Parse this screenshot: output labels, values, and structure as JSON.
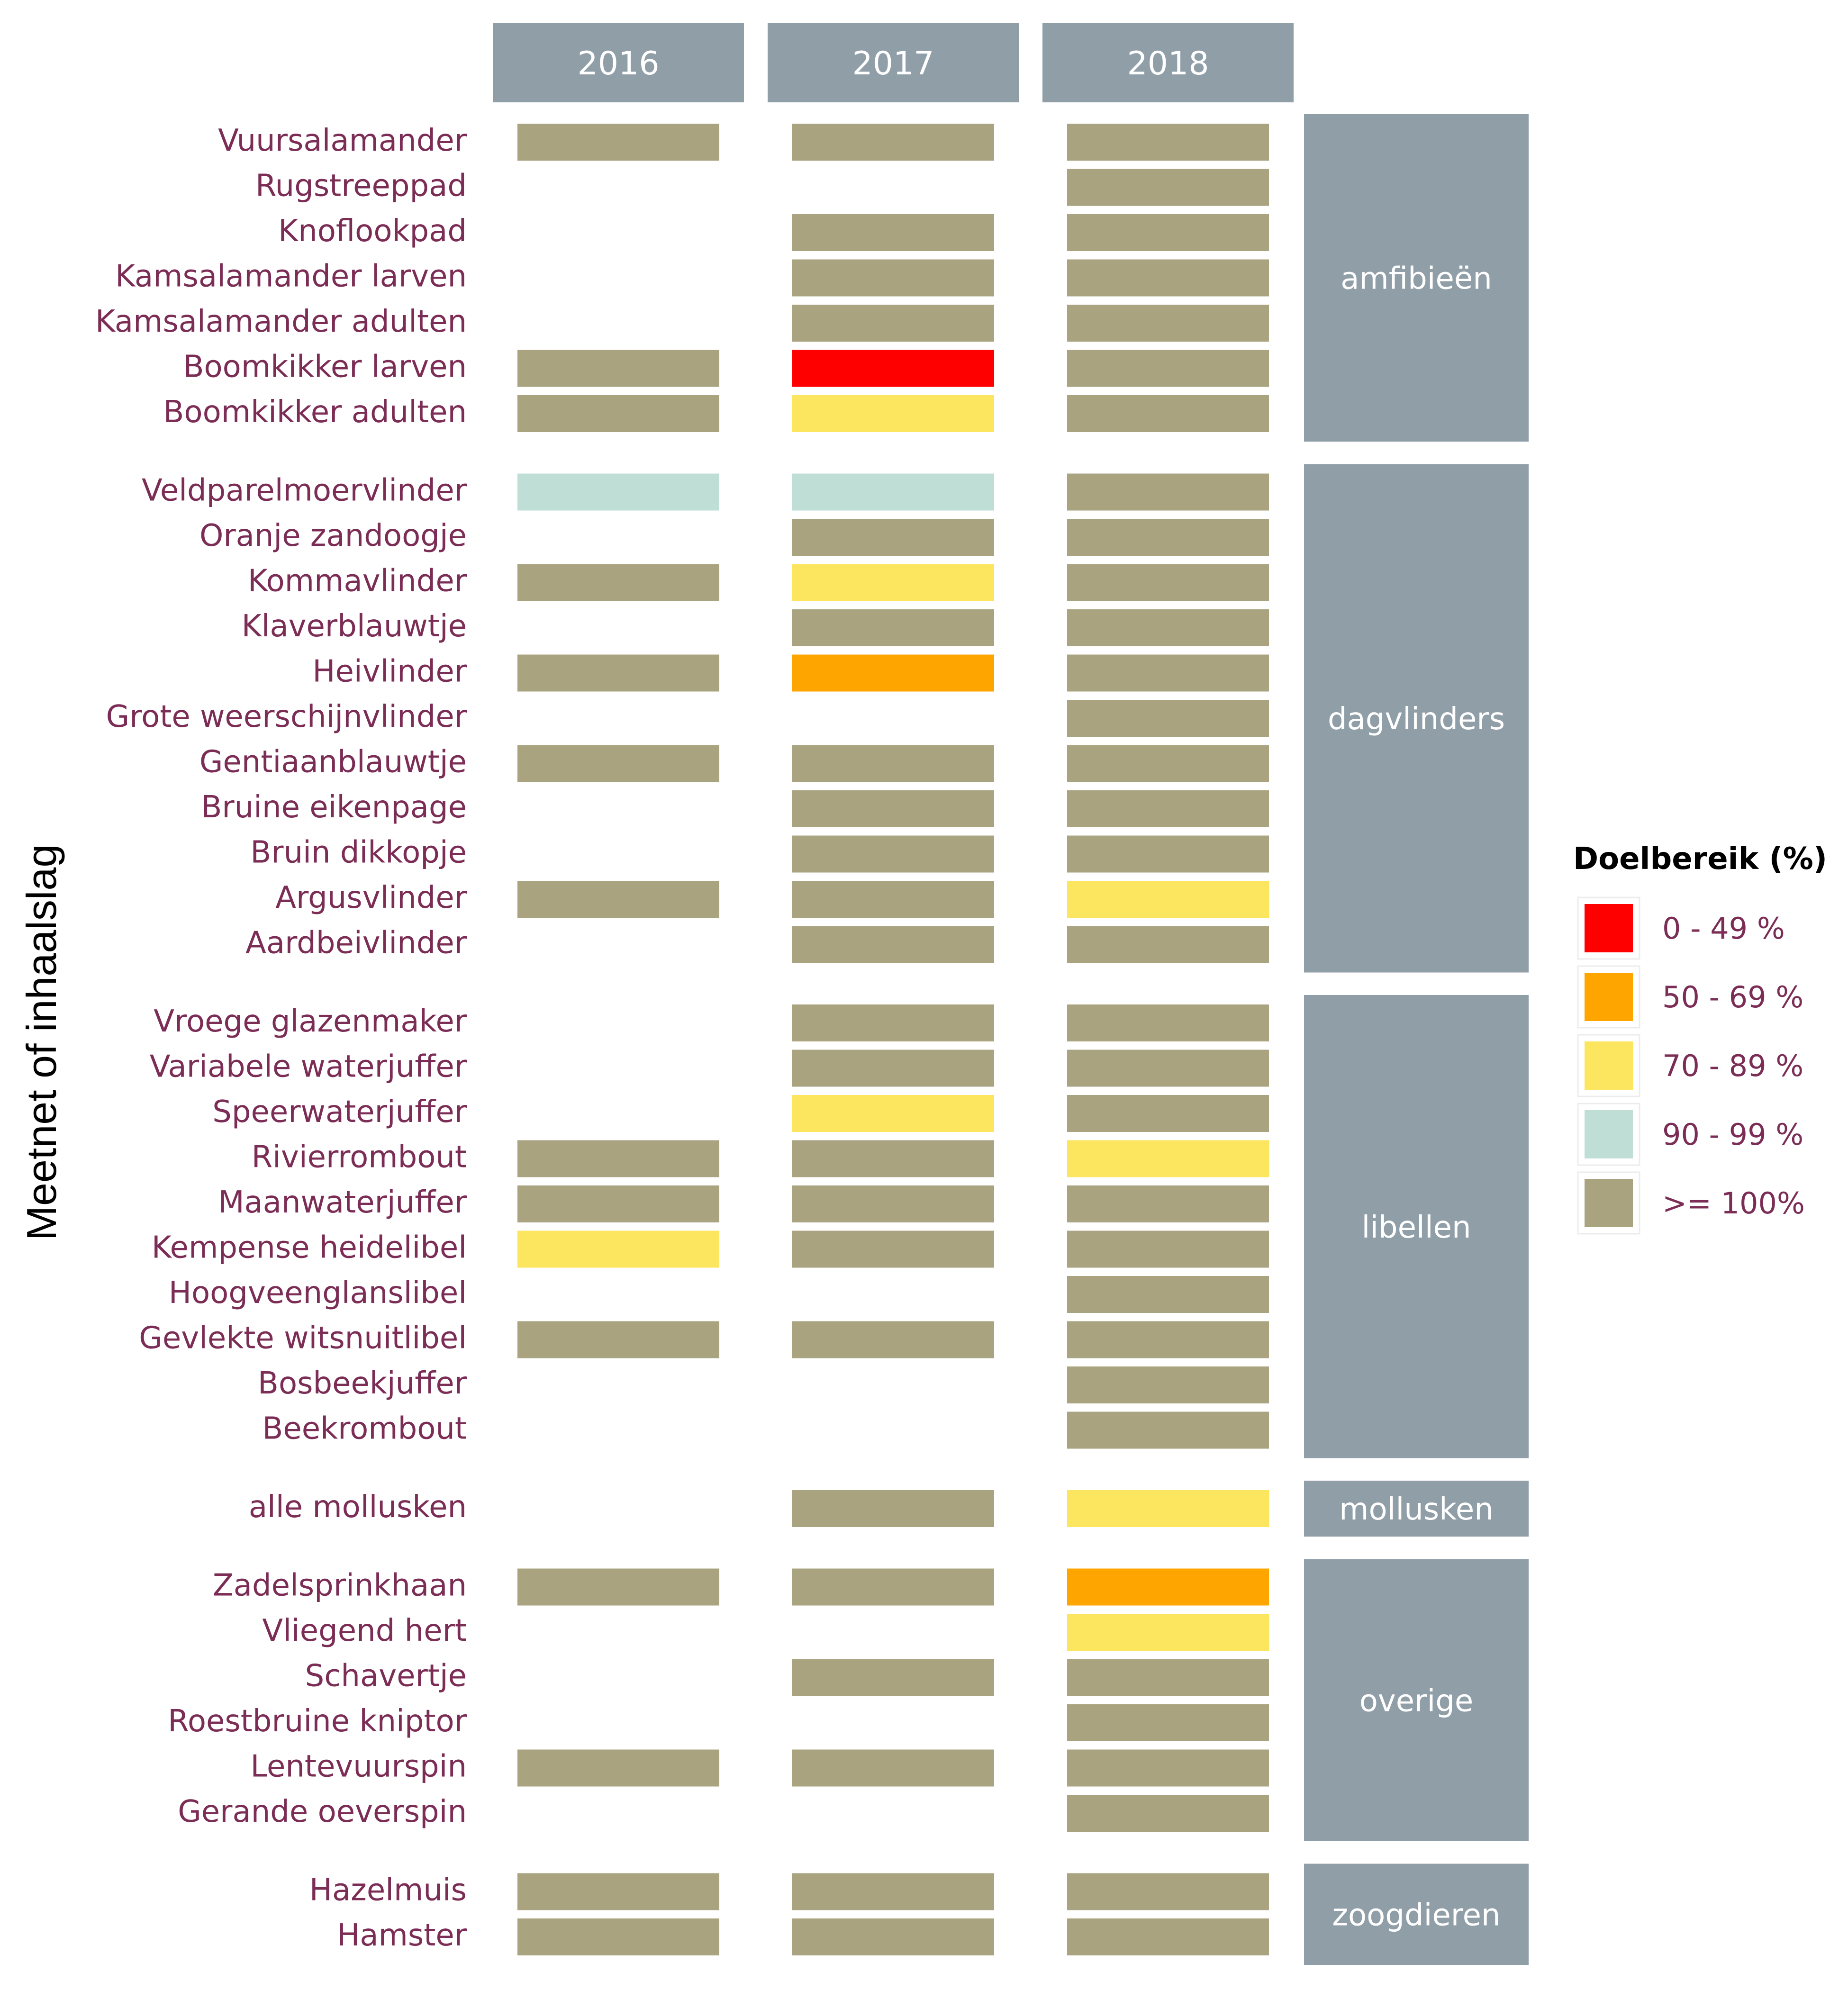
{
  "chart_data": {
    "type": "heatmap",
    "y_axis_title": "Meetnet of inhaalslag",
    "columns": [
      "2016",
      "2017",
      "2018"
    ],
    "legend": {
      "title": "Doelbereik (%)",
      "items": [
        {
          "key": "c0",
          "label": "0 - 49 %",
          "color": "#ff0000"
        },
        {
          "key": "c50",
          "label": "50 - 69 %",
          "color": "#ffa500"
        },
        {
          "key": "c70",
          "label": "70 - 89 %",
          "color": "#fde65f"
        },
        {
          "key": "c90",
          "label": "90 - 99 %",
          "color": "#bfdfd6"
        },
        {
          "key": "c100",
          "label": ">= 100%",
          "color": "#a9a37f"
        }
      ]
    },
    "colors": {
      "header_bg": "#909ea8",
      "header_text": "#ffffff",
      "label_text": "#7b2d55",
      "legend_title": "#000000"
    },
    "groups": [
      {
        "name": "amfibieën",
        "rows": [
          {
            "label": "Vuursalamander",
            "values": [
              "c100",
              "c100",
              "c100"
            ]
          },
          {
            "label": "Rugstreeppad",
            "values": [
              null,
              null,
              "c100"
            ]
          },
          {
            "label": "Knoflookpad",
            "values": [
              null,
              "c100",
              "c100"
            ]
          },
          {
            "label": "Kamsalamander larven",
            "values": [
              null,
              "c100",
              "c100"
            ]
          },
          {
            "label": "Kamsalamander adulten",
            "values": [
              null,
              "c100",
              "c100"
            ]
          },
          {
            "label": "Boomkikker larven",
            "values": [
              "c100",
              "c0",
              "c100"
            ]
          },
          {
            "label": "Boomkikker adulten",
            "values": [
              "c100",
              "c70",
              "c100"
            ]
          }
        ]
      },
      {
        "name": "dagvlinders",
        "rows": [
          {
            "label": "Veldparelmoervlinder",
            "values": [
              "c90",
              "c90",
              "c100"
            ]
          },
          {
            "label": "Oranje zandoogje",
            "values": [
              null,
              "c100",
              "c100"
            ]
          },
          {
            "label": "Kommavlinder",
            "values": [
              "c100",
              "c70",
              "c100"
            ]
          },
          {
            "label": "Klaverblauwtje",
            "values": [
              null,
              "c100",
              "c100"
            ]
          },
          {
            "label": "Heivlinder",
            "values": [
              "c100",
              "c50",
              "c100"
            ]
          },
          {
            "label": "Grote weerschijnvlinder",
            "values": [
              null,
              null,
              "c100"
            ]
          },
          {
            "label": "Gentiaanblauwtje",
            "values": [
              "c100",
              "c100",
              "c100"
            ]
          },
          {
            "label": "Bruine eikenpage",
            "values": [
              null,
              "c100",
              "c100"
            ]
          },
          {
            "label": "Bruin dikkopje",
            "values": [
              null,
              "c100",
              "c100"
            ]
          },
          {
            "label": "Argusvlinder",
            "values": [
              "c100",
              "c100",
              "c70"
            ]
          },
          {
            "label": "Aardbeivlinder",
            "values": [
              null,
              "c100",
              "c100"
            ]
          }
        ]
      },
      {
        "name": "libellen",
        "rows": [
          {
            "label": "Vroege glazenmaker",
            "values": [
              null,
              "c100",
              "c100"
            ]
          },
          {
            "label": "Variabele waterjuffer",
            "values": [
              null,
              "c100",
              "c100"
            ]
          },
          {
            "label": "Speerwaterjuffer",
            "values": [
              null,
              "c70",
              "c100"
            ]
          },
          {
            "label": "Rivierrombout",
            "values": [
              "c100",
              "c100",
              "c70"
            ]
          },
          {
            "label": "Maanwaterjuffer",
            "values": [
              "c100",
              "c100",
              "c100"
            ]
          },
          {
            "label": "Kempense heidelibel",
            "values": [
              "c70",
              "c100",
              "c100"
            ]
          },
          {
            "label": "Hoogveenglanslibel",
            "values": [
              null,
              null,
              "c100"
            ]
          },
          {
            "label": "Gevlekte witsnuitlibel",
            "values": [
              "c100",
              "c100",
              "c100"
            ]
          },
          {
            "label": "Bosbeekjuffer",
            "values": [
              null,
              null,
              "c100"
            ]
          },
          {
            "label": "Beekrombout",
            "values": [
              null,
              null,
              "c100"
            ]
          }
        ]
      },
      {
        "name": "mollusken",
        "rows": [
          {
            "label": "alle mollusken",
            "values": [
              null,
              "c100",
              "c70"
            ]
          }
        ]
      },
      {
        "name": "overige",
        "rows": [
          {
            "label": "Zadelsprinkhaan",
            "values": [
              "c100",
              "c100",
              "c50"
            ]
          },
          {
            "label": "Vliegend hert",
            "values": [
              null,
              null,
              "c70"
            ]
          },
          {
            "label": "Schavertje",
            "values": [
              null,
              "c100",
              "c100"
            ]
          },
          {
            "label": "Roestbruine kniptor",
            "values": [
              null,
              null,
              "c100"
            ]
          },
          {
            "label": "Lentevuurspin",
            "values": [
              "c100",
              "c100",
              "c100"
            ]
          },
          {
            "label": "Gerande oeverspin",
            "values": [
              null,
              null,
              "c100"
            ]
          }
        ]
      },
      {
        "name": "zoogdieren",
        "rows": [
          {
            "label": "Hazelmuis",
            "values": [
              "c100",
              "c100",
              "c100"
            ]
          },
          {
            "label": "Hamster",
            "values": [
              "c100",
              "c100",
              "c100"
            ]
          }
        ]
      }
    ]
  }
}
